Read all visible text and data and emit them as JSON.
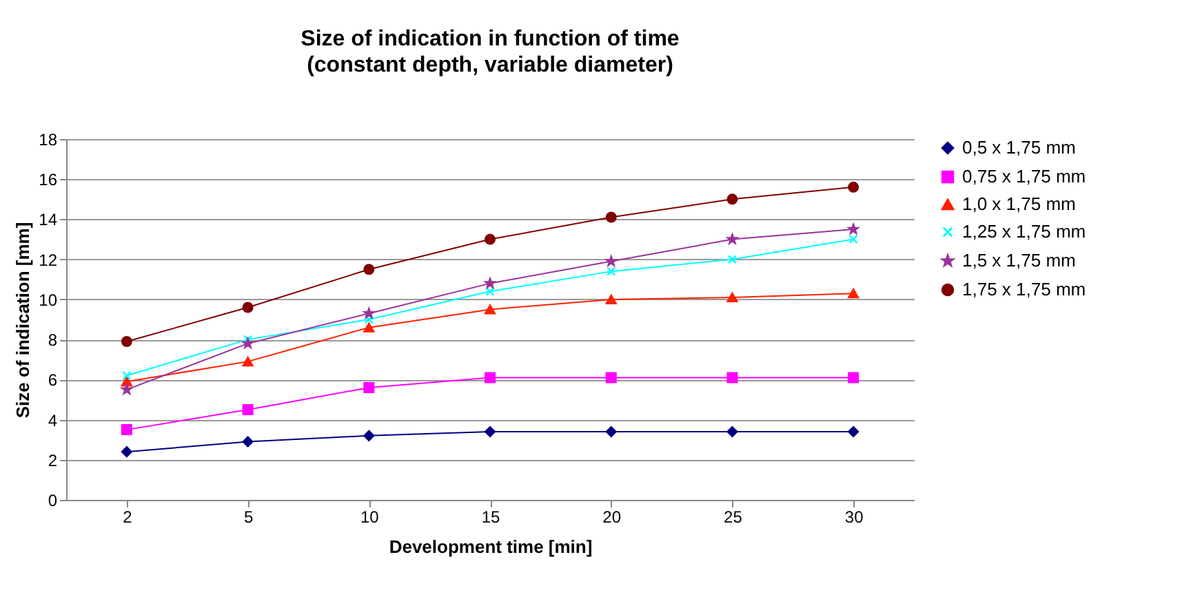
{
  "chart_data": {
    "type": "line",
    "title": "Size of indication in function of time",
    "subtitle": "(constant depth, variable diameter)",
    "xlabel": "Development time [min]",
    "ylabel": "Size of indication [mm]",
    "categories": [
      "2",
      "5",
      "10",
      "15",
      "20",
      "25",
      "30"
    ],
    "series": [
      {
        "name": "0,5 x 1,75 mm",
        "color": "#000080",
        "marker": "diamond",
        "values": [
          2.4,
          2.9,
          3.2,
          3.4,
          3.4,
          3.4,
          3.4
        ]
      },
      {
        "name": "0,75 x 1,75 mm",
        "color": "#ff00ff",
        "marker": "square",
        "values": [
          3.5,
          4.5,
          5.6,
          6.1,
          6.1,
          6.1,
          6.1
        ]
      },
      {
        "name": "1,0 x 1,75 mm",
        "color": "#ff2000",
        "marker": "triangle",
        "values": [
          5.9,
          6.9,
          8.6,
          9.5,
          10.0,
          10.1,
          10.3
        ]
      },
      {
        "name": "1,25 x 1,75 mm",
        "color": "#00ffff",
        "marker": "cross",
        "values": [
          6.2,
          8.0,
          9.0,
          10.4,
          11.4,
          12.0,
          13.0
        ]
      },
      {
        "name": "1,5 x 1,75 mm",
        "color": "#993399",
        "marker": "star",
        "values": [
          5.5,
          7.8,
          9.3,
          10.8,
          11.9,
          13.0,
          13.5
        ]
      },
      {
        "name": "1,75 x 1,75 mm",
        "color": "#800000",
        "marker": "circle",
        "values": [
          7.9,
          9.6,
          11.5,
          13.0,
          14.1,
          15.0,
          15.6
        ]
      }
    ],
    "ylim": [
      0,
      18
    ],
    "yticks": [
      0,
      2,
      4,
      6,
      8,
      10,
      12,
      14,
      16,
      18
    ],
    "grid": "y",
    "legend": "right"
  }
}
